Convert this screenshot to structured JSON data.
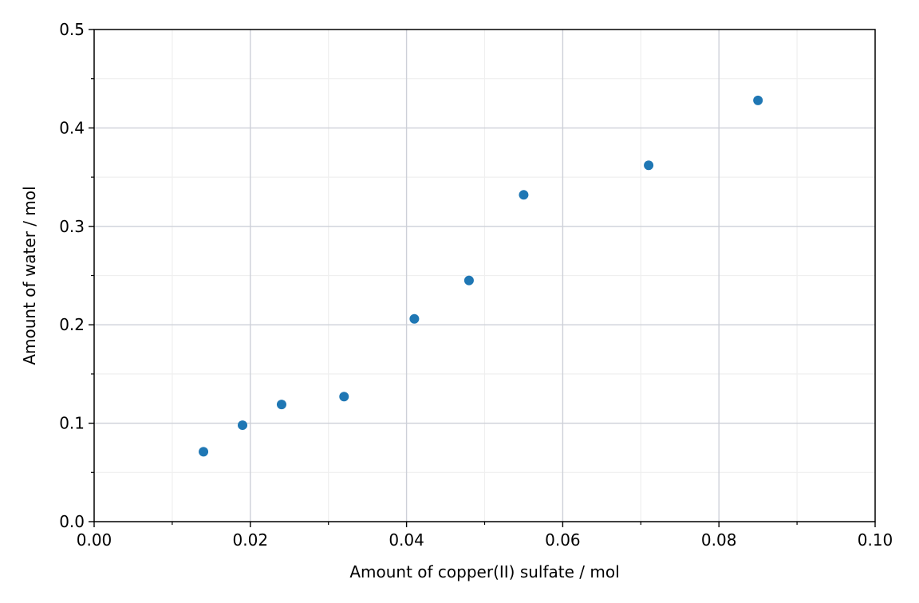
{
  "chart_data": {
    "type": "scatter",
    "title": "",
    "xlabel": "Amount of copper(II) sulfate / mol",
    "ylabel": "Amount of water / mol",
    "xlim": [
      0,
      0.1
    ],
    "ylim": [
      0,
      0.5
    ],
    "xticks": [
      "0.00",
      "0.02",
      "0.04",
      "0.06",
      "0.08",
      "0.10"
    ],
    "yticks": [
      "0.0",
      "0.1",
      "0.2",
      "0.3",
      "0.4",
      "0.5"
    ],
    "grid": true,
    "minor_grid": true,
    "point_color": "#1f77b4",
    "points": [
      {
        "x": 0.014,
        "y": 0.071
      },
      {
        "x": 0.019,
        "y": 0.098
      },
      {
        "x": 0.024,
        "y": 0.119
      },
      {
        "x": 0.032,
        "y": 0.127
      },
      {
        "x": 0.041,
        "y": 0.206
      },
      {
        "x": 0.048,
        "y": 0.245
      },
      {
        "x": 0.055,
        "y": 0.332
      },
      {
        "x": 0.071,
        "y": 0.362
      },
      {
        "x": 0.085,
        "y": 0.428
      }
    ]
  }
}
